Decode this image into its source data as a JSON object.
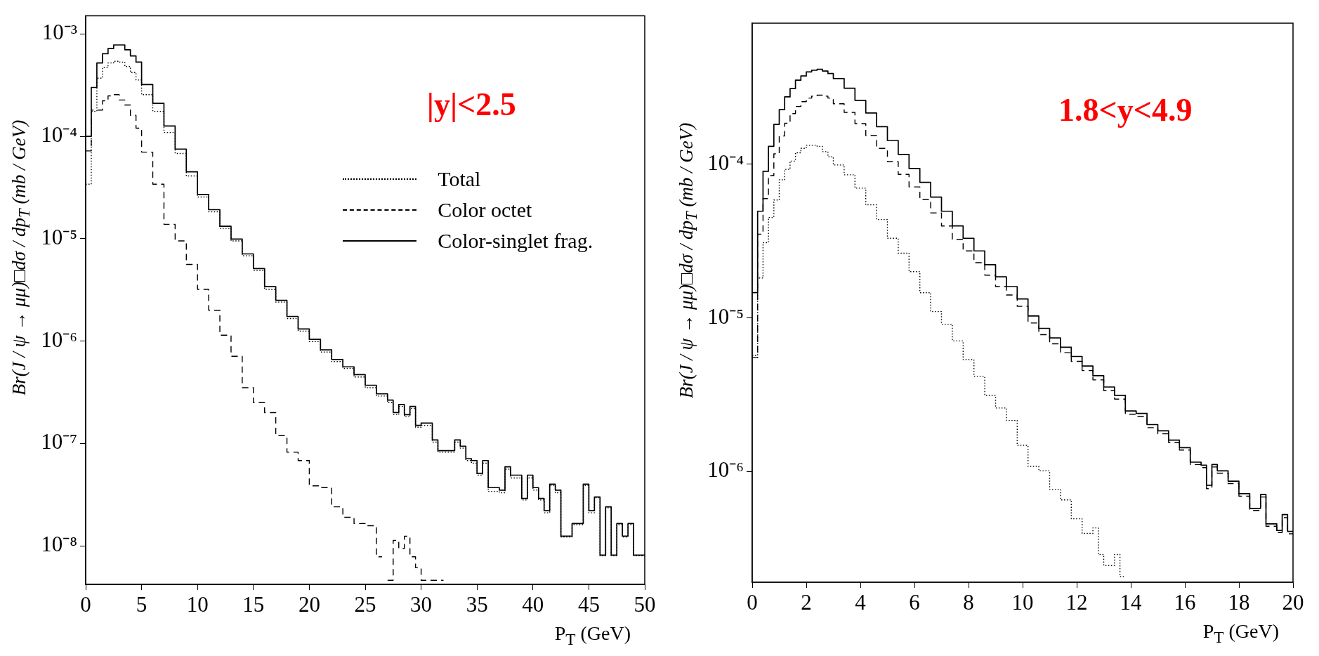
{
  "chart_data": [
    {
      "type": "step",
      "xlabel": "P$_{T}$ (GeV)",
      "ylabel": "Br(J / ψ → μμ)□dσ / dp$_{T}$ (mb / GeV)",
      "annotations": [
        "|y|<2.5"
      ],
      "xlim": [
        0,
        50
      ],
      "xticks": [
        0,
        5,
        10,
        15,
        20,
        25,
        30,
        35,
        40,
        45,
        50
      ],
      "ylim": [
        4.2e-09,
        0.0015
      ],
      "yticks": [
        {
          "value": 0.001,
          "label": "10⁻³"
        },
        {
          "value": 0.0001,
          "label": "10⁻⁴"
        },
        {
          "value": 1e-05,
          "label": "10⁻⁵"
        },
        {
          "value": 1e-06,
          "label": "10⁻⁶"
        },
        {
          "value": 1e-07,
          "label": "10⁻⁷"
        },
        {
          "value": 1e-08,
          "label": "10⁻⁸"
        }
      ],
      "log": true,
      "grid": false,
      "legend": "top right",
      "series": [
        {
          "name": "Total",
          "color": "#000000",
          "line_style": "dotted",
          "x": [
            0,
            0.5,
            1,
            1.5,
            2,
            2.5,
            3,
            3.5,
            4,
            4.5,
            5,
            6,
            7,
            8,
            9,
            10,
            11,
            12,
            13,
            14,
            15,
            16,
            17,
            18,
            19,
            20,
            21,
            22,
            23,
            24,
            25,
            26,
            27,
            27.5,
            28,
            28.5,
            29,
            29.5,
            30,
            31,
            31.5,
            32.5,
            33,
            33.5,
            34,
            34.5,
            35,
            35.5,
            36,
            37,
            37.5,
            38,
            39,
            39.5,
            40,
            40.5,
            41,
            41.5,
            42,
            42.5,
            43.5,
            44.5,
            45,
            45.5,
            46,
            46.5,
            47,
            47.5,
            48,
            48.5,
            49,
            50
          ],
          "values": [
            3.4e-05,
            0.000175,
            0.00037,
            0.00047,
            0.00052,
            0.00054,
            0.00053,
            0.00048,
            0.00042,
            0.000355,
            0.000255,
            0.000175,
            0.000109,
            6.8e-05,
            4.1e-05,
            2.55e-05,
            1.83e-05,
            1.26e-05,
            9.5e-06,
            6.8e-06,
            4.9e-06,
            3.2e-06,
            2.4e-06,
            1.66e-06,
            1.25e-06,
            9.9e-07,
            7.8e-07,
            6.3e-07,
            5.4e-07,
            4.45e-07,
            3.5e-07,
            2.9e-07,
            2.5e-07,
            1.91e-07,
            2.3e-07,
            1.82e-07,
            2.2e-07,
            1.44e-07,
            1.5e-07,
            1.03e-07,
            8.2e-08,
            8.2e-08,
            1.03e-07,
            9e-08,
            6.8e-08,
            6.4e-08,
            4.9e-08,
            6.4e-08,
            3.4e-08,
            3.3e-08,
            5.6e-08,
            4.6e-08,
            2.8e-08,
            4.6e-08,
            3.5e-08,
            2.8e-08,
            2.1e-08,
            3.9e-08,
            3.3e-08,
            1.22e-08,
            1.61e-08,
            3.9e-08,
            2.1e-08,
            2.95e-08,
            8e-09,
            2.35e-08,
            8e-09,
            1.61e-08,
            1.22e-08,
            1.61e-08,
            8e-09,
            8e-09
          ]
        },
        {
          "name": "Color octet",
          "color": "#000000",
          "line_style": "dashed",
          "x": [
            0,
            0.5,
            1,
            1.5,
            2,
            2.5,
            3,
            3.5,
            4,
            4.5,
            5,
            6,
            7,
            8,
            9,
            10,
            11,
            12,
            13,
            14,
            15,
            16,
            17,
            18,
            19,
            20,
            21,
            22,
            23,
            24,
            25,
            26,
            26.5,
            27,
            27.5,
            28,
            28.5,
            29,
            29.5,
            30,
            32
          ],
          "values": [
            7.2e-05,
            0.00018,
            0.00018,
            0.000222,
            0.000248,
            0.000255,
            0.000226,
            0.000202,
            0.00016,
            0.00012,
            7e-05,
            3.4e-05,
            1.38e-05,
            9.5e-06,
            5.6e-06,
            3.2e-06,
            2e-06,
            1.14e-06,
            7.1e-07,
            3.5e-07,
            2.5e-07,
            2e-07,
            1.19e-07,
            8.2e-08,
            6.8e-08,
            3.85e-08,
            3.7e-08,
            2.4e-08,
            1.9e-08,
            1.65e-08,
            1.57e-08,
            7.8e-09,
            null,
            4.6e-09,
            1.13e-08,
            9.4e-09,
            1.24e-08,
            7.8e-09,
            6.1e-09,
            4.6e-09,
            4.6e-09
          ]
        },
        {
          "name": "Color-singlet frag.",
          "color": "#000000",
          "line_style": "solid",
          "x": [
            0,
            0.5,
            1,
            1.5,
            2,
            2.5,
            3,
            3.5,
            4,
            4.5,
            5,
            6,
            7,
            8,
            9,
            10,
            11,
            12,
            13,
            14,
            15,
            16,
            17,
            18,
            19,
            20,
            21,
            22,
            23,
            24,
            25,
            26,
            27,
            27.5,
            28,
            28.5,
            29,
            29.5,
            30,
            31,
            31.5,
            32.5,
            33,
            33.5,
            34,
            34.5,
            35,
            35.5,
            36,
            37,
            37.5,
            38,
            39,
            39.5,
            40,
            40.5,
            41,
            41.5,
            42,
            42.5,
            43.5,
            44.5,
            45,
            45.5,
            46,
            46.5,
            47,
            47.5,
            48,
            48.5,
            49,
            50
          ],
          "values": [
            0.0001,
            0.0003,
            0.00052,
            0.00064,
            0.00072,
            0.00078,
            0.00078,
            0.0007,
            0.00061,
            0.00053,
            0.00032,
            0.00021,
            0.000126,
            7.5e-05,
            4.5e-05,
            2.7e-05,
            1.92e-05,
            1.32e-05,
            9.9e-06,
            7.1e-06,
            5.1e-06,
            3.4e-06,
            2.5e-06,
            1.74e-06,
            1.31e-06,
            1.04e-06,
            8.2e-07,
            6.6e-07,
            5.6e-07,
            4.7e-07,
            3.7e-07,
            3.05e-07,
            2.65e-07,
            2e-07,
            2.4e-07,
            1.91e-07,
            2.3e-07,
            1.5e-07,
            1.58e-07,
            1.08e-07,
            8.5e-08,
            8.5e-08,
            1.08e-07,
            9.4e-08,
            7.1e-08,
            6.8e-08,
            5.1e-08,
            6.8e-08,
            3.7e-08,
            3.5e-08,
            5.9e-08,
            4.9e-08,
            2.9e-08,
            4.9e-08,
            3.7e-08,
            2.9e-08,
            2.2e-08,
            4e-08,
            3.5e-08,
            1.24e-08,
            1.65e-08,
            4e-08,
            2.2e-08,
            3e-08,
            8.1e-09,
            2.4e-08,
            8.1e-09,
            1.65e-08,
            1.24e-08,
            1.65e-08,
            8.1e-09,
            8.1e-09
          ]
        }
      ]
    },
    {
      "type": "step",
      "xlabel": "P$_{T}$ (GeV)",
      "ylabel": "Br(J / ψ → μμ)□dσ / dp$_{T}$ (mb / GeV)",
      "annotations": [
        "1.8<y<4.9"
      ],
      "xlim": [
        0,
        20
      ],
      "xticks": [
        0,
        2,
        4,
        6,
        8,
        10,
        12,
        14,
        16,
        18,
        20
      ],
      "ylim": [
        1.9e-07,
        0.00083
      ],
      "yticks": [
        {
          "value": 0.0001,
          "label": "10⁻⁴"
        },
        {
          "value": 1e-05,
          "label": "10⁻⁵"
        },
        {
          "value": 1e-06,
          "label": "10⁻⁶"
        }
      ],
      "log": true,
      "grid": false,
      "series": [
        {
          "color": "#000000",
          "line_style": "solid",
          "x": [
            0,
            0.2,
            0.4,
            0.6,
            0.8,
            1.0,
            1.2,
            1.4,
            1.6,
            1.8,
            2.0,
            2.2,
            2.4,
            2.6,
            2.8,
            3.0,
            3.4,
            3.8,
            4.2,
            4.6,
            5.0,
            5.4,
            5.8,
            6.2,
            6.6,
            7.0,
            7.4,
            7.8,
            8.2,
            8.6,
            9.0,
            9.4,
            9.8,
            10.2,
            10.6,
            11.0,
            11.4,
            11.8,
            12.2,
            12.6,
            13.0,
            13.4,
            13.8,
            14.2,
            14.6,
            15.0,
            15.4,
            15.8,
            16.2,
            16.6,
            16.8,
            17.0,
            17.2,
            17.6,
            18.0,
            18.4,
            18.8,
            19.0,
            19.4,
            19.6,
            19.8,
            20
          ],
          "values": [
            1.46e-05,
            4.95e-05,
            9e-05,
            0.000131,
            0.000182,
            0.000227,
            0.000275,
            0.000311,
            0.000353,
            0.000376,
            0.0004,
            0.00041,
            0.000416,
            0.000405,
            0.00039,
            0.000362,
            0.000313,
            0.000261,
            0.000216,
            0.000176,
            0.000143,
            0.000116,
            9.4e-05,
            7.64e-05,
            6.12e-05,
            4.95e-05,
            3.97e-05,
            3.3e-05,
            2.73e-05,
            2.22e-05,
            1.85e-05,
            1.6e-05,
            1.33e-05,
            1.03e-05,
            8.55e-06,
            7.4e-06,
            6.44e-06,
            5.61e-06,
            4.86e-06,
            4.21e-06,
            3.55e-06,
            3.13e-06,
            2.48e-06,
            2.39e-06,
            2.02e-06,
            1.84e-06,
            1.6e-06,
            1.43e-06,
            1.15e-06,
            1.1e-06,
            8.13e-07,
            1.11e-06,
            1.01e-06,
            8.65e-07,
            7.17e-07,
            5.75e-07,
            7.08e-07,
            4.56e-07,
            4.13e-07,
            5.24e-07,
            4.07e-07,
            4.07e-07
          ]
        },
        {
          "color": "#000000",
          "line_style": "dashed",
          "x": [
            0,
            0.2,
            0.4,
            0.6,
            0.8,
            1.0,
            1.2,
            1.4,
            1.6,
            1.8,
            2.0,
            2.2,
            2.4,
            2.6,
            2.8,
            3.0,
            3.4,
            3.8,
            4.2,
            4.6,
            5.0,
            5.4,
            5.8,
            6.2,
            6.6,
            7.0,
            7.4,
            7.8,
            8.2,
            8.6,
            9.0,
            9.4,
            9.8,
            10.2,
            10.6,
            11.0,
            11.4,
            11.8,
            12.2,
            12.6,
            13.0,
            13.4,
            13.8,
            14.2,
            14.6,
            15.0,
            15.4,
            15.8,
            16.2,
            16.6,
            16.8,
            17.0,
            17.2,
            17.6,
            18.0,
            18.4,
            18.8,
            19.0,
            19.4,
            19.6,
            19.8,
            20
          ],
          "values": [
            5.5e-06,
            3.51e-05,
            5.98e-05,
            8.44e-05,
            0.000117,
            0.000153,
            0.000185,
            0.000214,
            0.000238,
            0.000256,
            0.00027,
            0.000278,
            0.000282,
            0.000278,
            0.00027,
            0.000248,
            0.000218,
            0.000184,
            0.000154,
            0.000127,
            0.000104,
            8.61e-05,
            7.13e-05,
            5.9e-05,
            4.83e-05,
            3.97e-05,
            3.25e-05,
            2.73e-05,
            2.29e-05,
            1.9e-05,
            1.6e-05,
            1.41e-05,
            1.19e-05,
            9.27e-06,
            7.78e-06,
            6.78e-06,
            5.94e-06,
            5.21e-06,
            4.54e-06,
            3.95e-06,
            3.36e-06,
            2.96e-06,
            2.36e-06,
            2.28e-06,
            1.93e-06,
            1.76e-06,
            1.54e-06,
            1.38e-06,
            1.11e-06,
            1.06e-06,
            7.73e-07,
            1.07e-06,
            9.75e-07,
            8.34e-07,
            6.9e-07,
            5.58e-07,
            6.82e-07,
            4.4e-07,
            4e-07,
            5.01e-07,
            3.93e-07,
            3.93e-07
          ]
        },
        {
          "color": "#000000",
          "line_style": "dotted",
          "x": [
            0,
            0.2,
            0.4,
            0.6,
            0.8,
            1.0,
            1.2,
            1.4,
            1.6,
            1.8,
            2.0,
            2.2,
            2.4,
            2.6,
            2.8,
            3.0,
            3.4,
            3.8,
            4.2,
            4.6,
            5.0,
            5.4,
            5.8,
            6.2,
            6.6,
            7.0,
            7.4,
            7.8,
            8.2,
            8.6,
            9.0,
            9.4,
            9.8,
            10.2,
            10.6,
            11.0,
            11.4,
            11.8,
            12.2,
            12.6,
            12.8,
            13.0,
            13.4,
            13.6,
            13.8
          ],
          "values": [
            5.7e-06,
            1.82e-05,
            3.09e-05,
            4.51e-05,
            5.86e-05,
            7.93e-05,
            9.27e-05,
            0.000105,
            0.000119,
            0.000127,
            0.000133,
            0.000133,
            0.000131,
            0.000121,
            0.000112,
            9.9e-05,
            8.55e-05,
            7e-05,
            5.45e-05,
            4.37e-05,
            3.3e-05,
            2.64e-05,
            2e-05,
            1.46e-05,
            1.1e-05,
            9.1e-06,
            7.08e-06,
            5.35e-06,
            4.16e-06,
            3.13e-06,
            2.59e-06,
            2.15e-06,
            1.48e-06,
            1.08e-06,
            1.01e-06,
            7.64e-07,
            6.53e-07,
            4.92e-07,
            3.95e-07,
            4.29e-07,
            2.88e-07,
            2.44e-07,
            2.88e-07,
            2.07e-07,
            2.07e-07
          ]
        }
      ]
    }
  ]
}
